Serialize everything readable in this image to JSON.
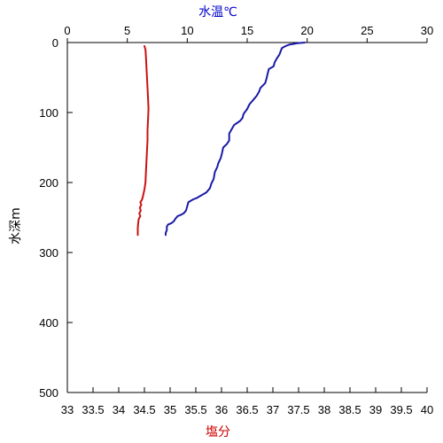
{
  "chart_data": {
    "type": "line",
    "top_axis": {
      "label": "水温℃",
      "color": "#0000cc",
      "range": [
        0,
        30
      ],
      "ticks": [
        "0",
        "5",
        "10",
        "15",
        "20",
        "25",
        "30"
      ]
    },
    "bottom_axis": {
      "label": "塩分",
      "color": "#cc0000",
      "range": [
        33,
        40
      ],
      "ticks": [
        "33",
        "33.5",
        "34",
        "34.5",
        "35",
        "35.5",
        "36",
        "36.5",
        "37",
        "37.5",
        "38",
        "38.5",
        "39",
        "39.5",
        "40"
      ]
    },
    "y_axis": {
      "label": "水深m",
      "color": "#000000",
      "range": [
        0,
        500
      ],
      "inverted": true,
      "ticks": [
        "0",
        "100",
        "200",
        "300",
        "400",
        "500"
      ]
    },
    "grid": false,
    "series": [
      {
        "axis": "top",
        "color": "#1a1aa8",
        "points": [
          [
            19.8,
            0
          ],
          [
            19.2,
            1
          ],
          [
            18.5,
            3
          ],
          [
            18.2,
            5
          ],
          [
            17.9,
            8
          ],
          [
            17.8,
            12
          ],
          [
            17.7,
            17
          ],
          [
            17.5,
            22
          ],
          [
            17.3,
            28
          ],
          [
            17.2,
            34
          ],
          [
            16.8,
            38
          ],
          [
            16.7,
            45
          ],
          [
            16.6,
            52
          ],
          [
            16.5,
            58
          ],
          [
            16.1,
            65
          ],
          [
            16.0,
            70
          ],
          [
            15.8,
            76
          ],
          [
            15.5,
            82
          ],
          [
            15.2,
            88
          ],
          [
            15.0,
            95
          ],
          [
            14.7,
            102
          ],
          [
            14.6,
            108
          ],
          [
            14.4,
            112
          ],
          [
            13.9,
            118
          ],
          [
            13.7,
            124
          ],
          [
            13.5,
            130
          ],
          [
            13.5,
            140
          ],
          [
            13.3,
            145
          ],
          [
            13.0,
            150
          ],
          [
            12.9,
            158
          ],
          [
            12.8,
            165
          ],
          [
            12.6,
            172
          ],
          [
            12.5,
            178
          ],
          [
            12.3,
            185
          ],
          [
            12.2,
            195
          ],
          [
            12.0,
            202
          ],
          [
            11.9,
            208
          ],
          [
            11.6,
            214
          ],
          [
            11.2,
            218
          ],
          [
            10.8,
            222
          ],
          [
            10.5,
            224
          ],
          [
            10.1,
            228
          ],
          [
            10.0,
            234
          ],
          [
            9.9,
            240
          ],
          [
            9.7,
            244
          ],
          [
            9.5,
            246
          ],
          [
            9.2,
            248
          ],
          [
            9.0,
            252
          ],
          [
            8.9,
            255
          ],
          [
            8.7,
            258
          ],
          [
            8.4,
            260
          ],
          [
            8.3,
            263
          ],
          [
            8.3,
            268
          ],
          [
            8.2,
            272
          ],
          [
            8.2,
            275
          ]
        ]
      },
      {
        "axis": "bottom",
        "color": "#cc1111",
        "points": [
          [
            34.5,
            5
          ],
          [
            34.52,
            10
          ],
          [
            34.53,
            20
          ],
          [
            34.54,
            35
          ],
          [
            34.55,
            50
          ],
          [
            34.56,
            65
          ],
          [
            34.57,
            80
          ],
          [
            34.58,
            95
          ],
          [
            34.57,
            110
          ],
          [
            34.56,
            125
          ],
          [
            34.56,
            140
          ],
          [
            34.55,
            155
          ],
          [
            34.54,
            170
          ],
          [
            34.53,
            185
          ],
          [
            34.52,
            200
          ],
          [
            34.5,
            210
          ],
          [
            34.47,
            220
          ],
          [
            34.45,
            225
          ],
          [
            34.42,
            228
          ],
          [
            34.44,
            232
          ],
          [
            34.41,
            236
          ],
          [
            34.43,
            240
          ],
          [
            34.4,
            244
          ],
          [
            34.42,
            248
          ],
          [
            34.39,
            252
          ],
          [
            34.38,
            258
          ],
          [
            34.37,
            265
          ],
          [
            34.37,
            270
          ],
          [
            34.37,
            275
          ]
        ]
      }
    ]
  }
}
